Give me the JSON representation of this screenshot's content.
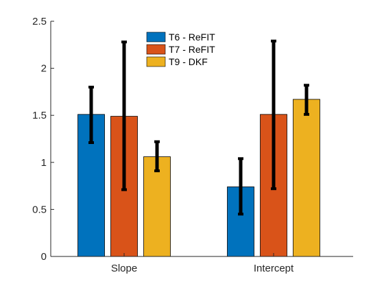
{
  "chart_data": {
    "type": "bar",
    "title": "",
    "xlabel": "",
    "ylabel": "",
    "categories": [
      "Slope",
      "Intercept"
    ],
    "ylim": [
      0,
      2.5
    ],
    "yticks": [
      0,
      0.5,
      1,
      1.5,
      2,
      2.5
    ],
    "ytick_labels": [
      "0",
      "0.5",
      "1",
      "1.5",
      "2",
      "2.5"
    ],
    "grid": false,
    "legend_position": "top-center",
    "series": [
      {
        "name": "T6 - ReFIT",
        "color": "#0072BD",
        "values": [
          1.51,
          0.74
        ],
        "error_low": [
          1.21,
          0.45
        ],
        "error_high": [
          1.8,
          1.04
        ]
      },
      {
        "name": "T7 - ReFIT",
        "color": "#D95319",
        "values": [
          1.49,
          1.51
        ],
        "error_low": [
          0.71,
          0.72
        ],
        "error_high": [
          2.28,
          2.29
        ]
      },
      {
        "name": "T9 - DKF",
        "color": "#EDB120",
        "values": [
          1.06,
          1.67
        ],
        "error_low": [
          0.91,
          1.51
        ],
        "error_high": [
          1.22,
          1.82
        ]
      }
    ]
  }
}
